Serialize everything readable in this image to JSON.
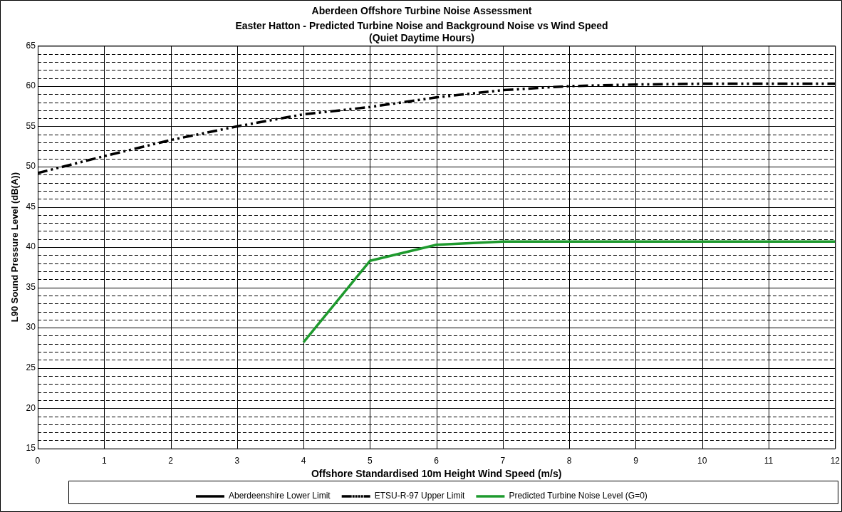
{
  "chart_data": {
    "type": "line",
    "title": "Aberdeen Offshore Turbine Noise Assessment",
    "subtitle": "Easter Hatton - Predicted Turbine Noise and Background Noise vs Wind Speed\n(Quiet Daytime Hours)",
    "xlabel": "Offshore Standardised 10m Height Wind Speed (m/s)",
    "ylabel": "L90 Sound Pressure Level (dB(A))",
    "x": [
      0,
      1,
      2,
      3,
      4,
      5,
      6,
      7,
      8,
      9,
      10,
      11,
      12
    ],
    "series": [
      {
        "name": "Aberdeenshire Lower Limit",
        "color": "#000000",
        "line_style": "solid",
        "values": [
          null,
          null,
          null,
          null,
          null,
          null,
          null,
          null,
          null,
          null,
          null,
          null,
          null
        ]
      },
      {
        "name": "ETSU-R-97 Upper Limit",
        "color": "#000000",
        "line_style": "dashed",
        "values": [
          49.2,
          51.3,
          53.3,
          55.0,
          56.5,
          57.4,
          58.6,
          59.5,
          60.0,
          60.2,
          60.3,
          60.3,
          60.3
        ]
      },
      {
        "name": "Predicted Turbine Noise Level (G=0)",
        "color": "#1e9a2e",
        "line_style": "solid",
        "values": [
          null,
          null,
          null,
          null,
          28.2,
          38.3,
          40.3,
          40.7,
          40.7,
          40.7,
          40.7,
          40.7,
          40.7
        ]
      }
    ],
    "xlim": [
      0,
      12
    ],
    "xticks": [
      0,
      1,
      2,
      3,
      4,
      5,
      6,
      7,
      8,
      9,
      10,
      11,
      12
    ],
    "ylim": [
      15,
      65
    ],
    "yticks": [
      15,
      {
        "value": 16,
        "label": null
      },
      {
        "value": 17,
        "label": null
      },
      {
        "value": 18,
        "label": null
      },
      {
        "value": 19,
        "label": null
      },
      20,
      {
        "value": 21,
        "label": null
      },
      {
        "value": 22,
        "label": null
      },
      {
        "value": 23,
        "label": null
      },
      {
        "value": 24,
        "label": null
      },
      25,
      {
        "value": 26,
        "label": null
      },
      {
        "value": 27,
        "label": null
      },
      {
        "value": 28,
        "label": null
      },
      {
        "value": 29,
        "label": null
      },
      30,
      {
        "value": 31,
        "label": null
      },
      {
        "value": 32,
        "label": null
      },
      {
        "value": 33,
        "label": null
      },
      {
        "value": 34,
        "label": null
      },
      35,
      {
        "value": 36,
        "label": null
      },
      {
        "value": 37,
        "label": null
      },
      {
        "value": 38,
        "label": null
      },
      {
        "value": 39,
        "label": null
      },
      40,
      {
        "value": 41,
        "label": null
      },
      {
        "value": 42,
        "label": null
      },
      {
        "value": 43,
        "label": null
      },
      {
        "value": 44,
        "label": null
      },
      45,
      {
        "value": 46,
        "label": null
      },
      {
        "value": 47,
        "label": null
      },
      {
        "value": 48,
        "label": null
      },
      {
        "value": 49,
        "label": null
      },
      50,
      {
        "value": 51,
        "label": null
      },
      {
        "value": 52,
        "label": null
      },
      {
        "value": 53,
        "label": null
      },
      {
        "value": 54,
        "label": null
      },
      55,
      {
        "value": 56,
        "label": null
      },
      {
        "value": 57,
        "label": null
      },
      {
        "value": 58,
        "label": null
      },
      {
        "value": 59,
        "label": null
      },
      60,
      {
        "value": 61,
        "label": null
      },
      {
        "value": 62,
        "label": null
      },
      {
        "value": 63,
        "label": null
      },
      {
        "value": 64,
        "label": null
      },
      65
    ],
    "grid": true,
    "legend": "bottom",
    "marker": "none"
  }
}
